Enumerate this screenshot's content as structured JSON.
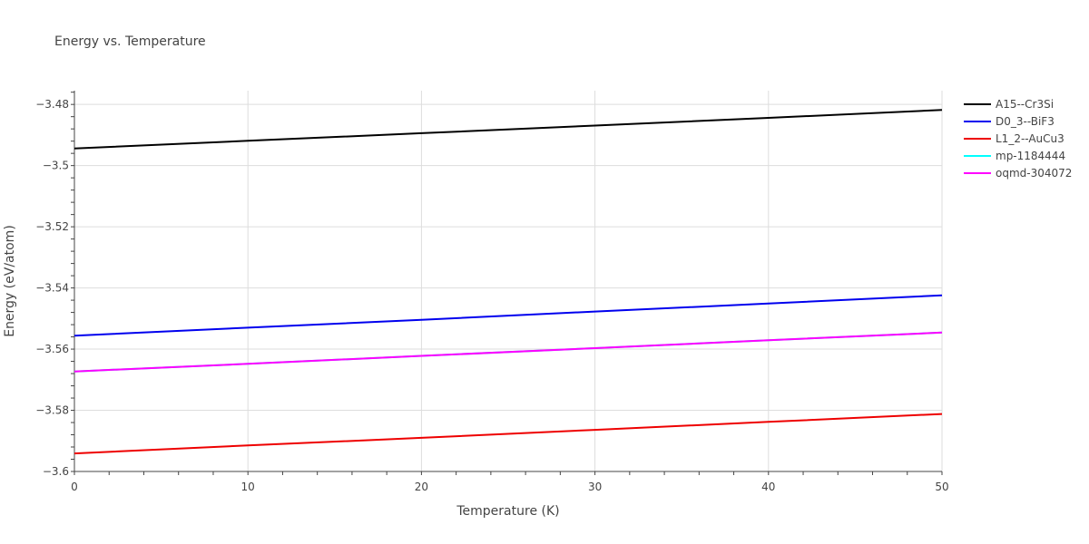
{
  "chart_data": {
    "type": "line",
    "title": "Energy vs. Temperature",
    "xlabel": "Temperature (K)",
    "ylabel": "Energy (eV/atom)",
    "xlim": [
      0,
      50
    ],
    "ylim": [
      -3.6,
      -3.4755
    ],
    "x_ticks": [
      0,
      10,
      20,
      30,
      40,
      50
    ],
    "x_tick_labels": [
      "0",
      "10",
      "20",
      "30",
      "40",
      "50"
    ],
    "y_ticks": [
      -3.6,
      -3.58,
      -3.56,
      -3.54,
      -3.52,
      -3.5,
      -3.48
    ],
    "y_tick_labels": [
      "−3.6",
      "−3.58",
      "−3.56",
      "−3.54",
      "−3.52",
      "−3.5",
      "−3.48"
    ],
    "grid": true,
    "legend_position": "top-right",
    "series": [
      {
        "name": "A15--Cr3Si",
        "color": "#000000",
        "x": [
          0,
          10,
          20,
          30,
          40,
          50
        ],
        "y": [
          -3.4944,
          -3.4919,
          -3.4894,
          -3.4869,
          -3.4844,
          -3.4818
        ]
      },
      {
        "name": "D0_3--BiF3",
        "color": "#0000ee",
        "x": [
          0,
          10,
          20,
          30,
          40,
          50
        ],
        "y": [
          -3.5556,
          -3.553,
          -3.5504,
          -3.5477,
          -3.5451,
          -3.5424
        ]
      },
      {
        "name": "L1_2--AuCu3",
        "color": "#ee0000",
        "x": [
          0,
          10,
          20,
          30,
          40,
          50
        ],
        "y": [
          -3.5941,
          -3.5915,
          -3.589,
          -3.5864,
          -3.5838,
          -3.5812
        ]
      },
      {
        "name": "mp-1184444",
        "color": "#00ffff",
        "x": [
          0,
          10,
          20,
          30,
          40,
          50
        ],
        "y": [
          -3.5673,
          -3.5648,
          -3.5622,
          -3.5597,
          -3.5571,
          -3.5546
        ]
      },
      {
        "name": "oqmd-304072",
        "color": "#ff00ff",
        "x": [
          0,
          10,
          20,
          30,
          40,
          50
        ],
        "y": [
          -3.5673,
          -3.5648,
          -3.5622,
          -3.5597,
          -3.5571,
          -3.5546
        ]
      }
    ]
  }
}
